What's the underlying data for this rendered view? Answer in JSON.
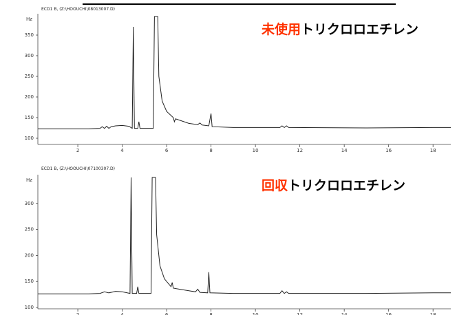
{
  "chart_data": [
    {
      "type": "line",
      "header": "ECD1 B, (Z:\\HOOUCHI\\08013007.D)",
      "ylabel": "Hz",
      "annotation_highlight": "未使用",
      "annotation_text": "トリクロロエチレン",
      "highlight_color": "#ff3300",
      "color": "#222222",
      "xlim": [
        0.2,
        18.8
      ],
      "ylim": [
        100,
        395
      ],
      "xticks": [
        2,
        4,
        6,
        8,
        10,
        12,
        14,
        16,
        18
      ],
      "yticks": [
        100,
        150,
        200,
        250,
        300,
        350
      ],
      "x": [
        0.2,
        2.5,
        3.0,
        3.1,
        3.2,
        3.3,
        3.4,
        3.5,
        3.7,
        4.0,
        4.3,
        4.45,
        4.5,
        4.55,
        4.7,
        4.75,
        4.8,
        5.4,
        5.45,
        5.6,
        5.65,
        5.8,
        6.0,
        6.3,
        6.35,
        6.4,
        7.0,
        7.4,
        7.5,
        7.6,
        7.9,
        8.0,
        8.05,
        9.0,
        11.1,
        11.2,
        11.3,
        11.4,
        11.5,
        15.0,
        18.0,
        18.8
      ],
      "values": [
        123,
        123,
        124,
        128,
        124,
        129,
        124,
        128,
        130,
        131,
        129,
        124,
        370,
        124,
        124,
        140,
        124,
        124,
        395,
        395,
        250,
        190,
        165,
        150,
        140,
        147,
        136,
        133,
        137,
        132,
        130,
        160,
        128,
        126,
        126,
        130,
        126,
        130,
        126,
        125,
        126,
        126
      ]
    },
    {
      "type": "line",
      "header": "ECD1 B, (Z:\\HOOUCHI\\07100307.D)",
      "ylabel": "Hz",
      "annotation_highlight": "回収",
      "annotation_text": "トリクロロエチレン",
      "highlight_color": "#ff3300",
      "color": "#222222",
      "xlim": [
        0.2,
        18.8
      ],
      "ylim": [
        100,
        350
      ],
      "xticks": [
        2,
        4,
        6,
        8,
        10,
        12,
        14,
        16,
        18
      ],
      "yticks": [
        100,
        150,
        200,
        250,
        300
      ],
      "x": [
        0.2,
        2.5,
        3.0,
        3.2,
        3.4,
        3.7,
        4.0,
        4.35,
        4.4,
        4.45,
        4.65,
        4.7,
        4.75,
        5.3,
        5.35,
        5.5,
        5.55,
        5.7,
        5.9,
        6.2,
        6.25,
        6.3,
        7.0,
        7.3,
        7.4,
        7.5,
        7.85,
        7.9,
        7.95,
        9.0,
        11.1,
        11.2,
        11.3,
        11.4,
        11.5,
        15.0,
        18.0,
        18.8
      ],
      "values": [
        126,
        126,
        127,
        130,
        128,
        131,
        130,
        127,
        350,
        127,
        127,
        140,
        127,
        127,
        350,
        350,
        240,
        180,
        155,
        140,
        148,
        137,
        132,
        130,
        135,
        129,
        128,
        168,
        128,
        127,
        127,
        132,
        127,
        130,
        127,
        127,
        128,
        128
      ]
    }
  ]
}
